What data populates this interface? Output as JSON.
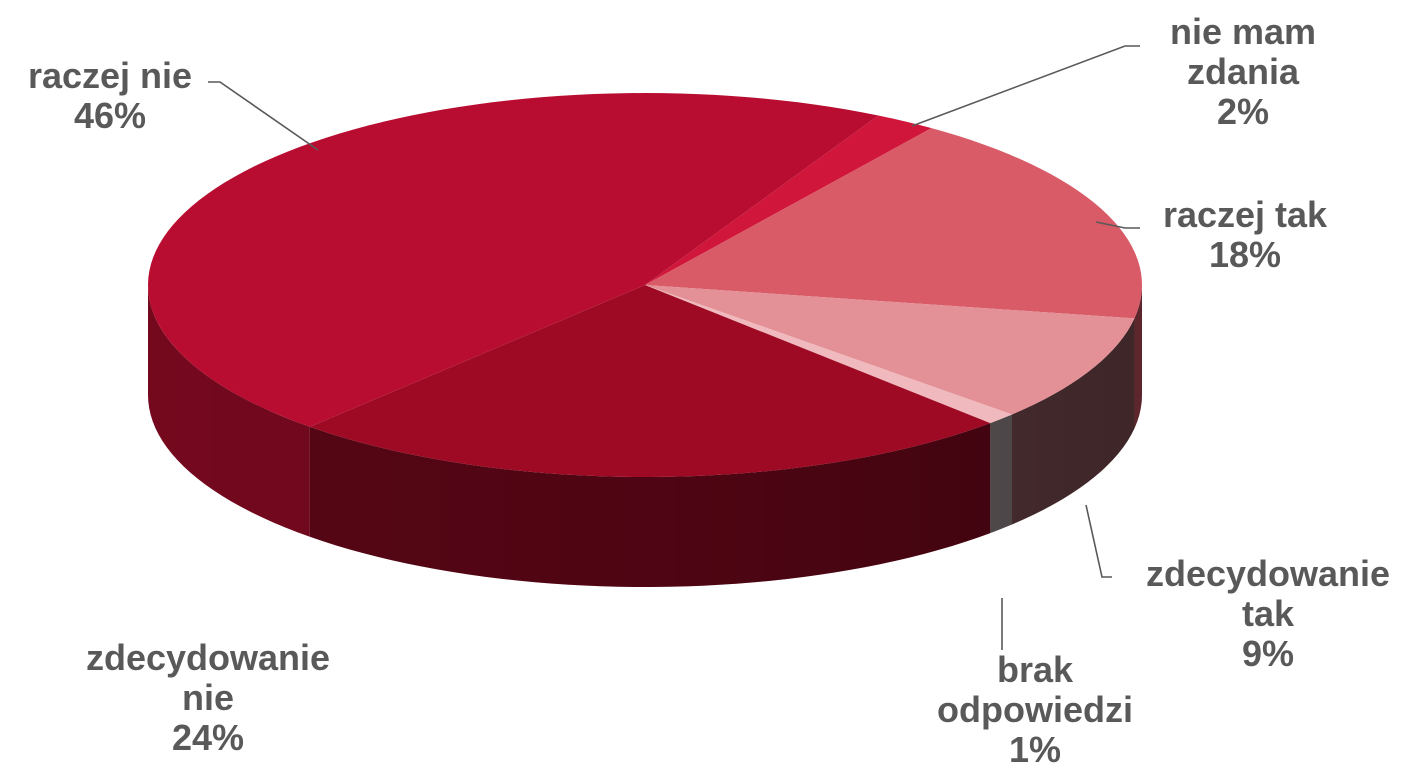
{
  "chart_data": {
    "type": "pie",
    "style": "3d",
    "title": "",
    "series": [
      {
        "name": "",
        "slices": [
          {
            "label": "nie mam zdania",
            "label_lines": [
              "nie mam",
              "zdania"
            ],
            "value": 2,
            "value_label": "2%",
            "color": "#d0163a",
            "side_color": "#8a0d26"
          },
          {
            "label": "raczej tak",
            "label_lines": [
              "raczej tak"
            ],
            "value": 18,
            "value_label": "18%",
            "color": "#d95b67",
            "side_color": "#8f3a43"
          },
          {
            "label": "zdecydowanie tak",
            "label_lines": [
              "zdecydowanie",
              "tak"
            ],
            "value": 9,
            "value_label": "9%",
            "color": "#e39096",
            "side_color": "#5e3a3e"
          },
          {
            "label": "brak odpowiedzi",
            "label_lines": [
              "brak",
              "odpowiedzi"
            ],
            "value": 1,
            "value_label": "1%",
            "color": "#f0b9bd",
            "side_color": "#6e6466"
          },
          {
            "label": "zdecydowanie nie",
            "label_lines": [
              "zdecydowanie",
              "nie"
            ],
            "value": 24,
            "value_label": "24%",
            "color": "#9e0a24",
            "side_color": "#5c0616"
          },
          {
            "label": "raczej nie",
            "label_lines": [
              "raczej nie"
            ],
            "value": 46,
            "value_label": "46%",
            "color": "#b80d30",
            "side_color": "#7a0920"
          }
        ]
      }
    ],
    "legend": "none"
  }
}
